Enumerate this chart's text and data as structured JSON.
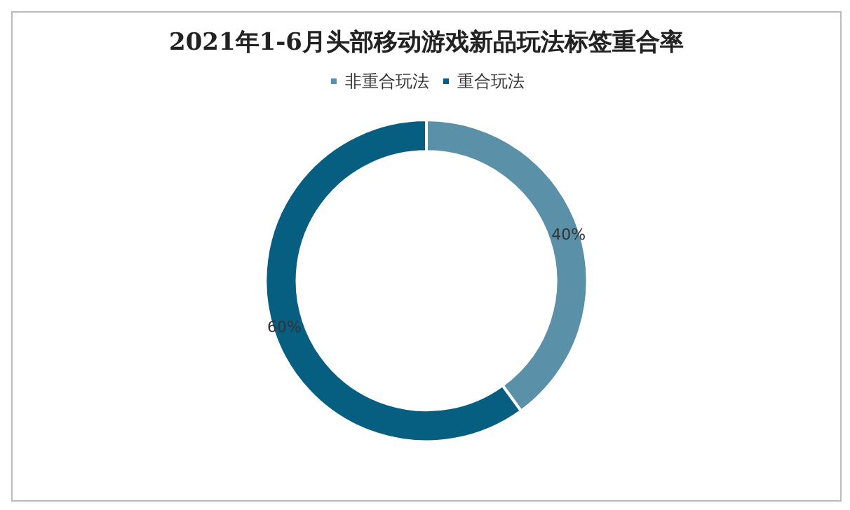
{
  "chart_data": {
    "type": "donut",
    "title": "2021年1-6月头部移动游戏新品玩法标签重合率",
    "categories": [
      "非重合玩法",
      "重合玩法"
    ],
    "values": [
      40,
      60
    ],
    "colors": [
      "#5b91a8",
      "#065f80"
    ],
    "value_labels": [
      "40%",
      "60%"
    ],
    "legend": "top"
  }
}
